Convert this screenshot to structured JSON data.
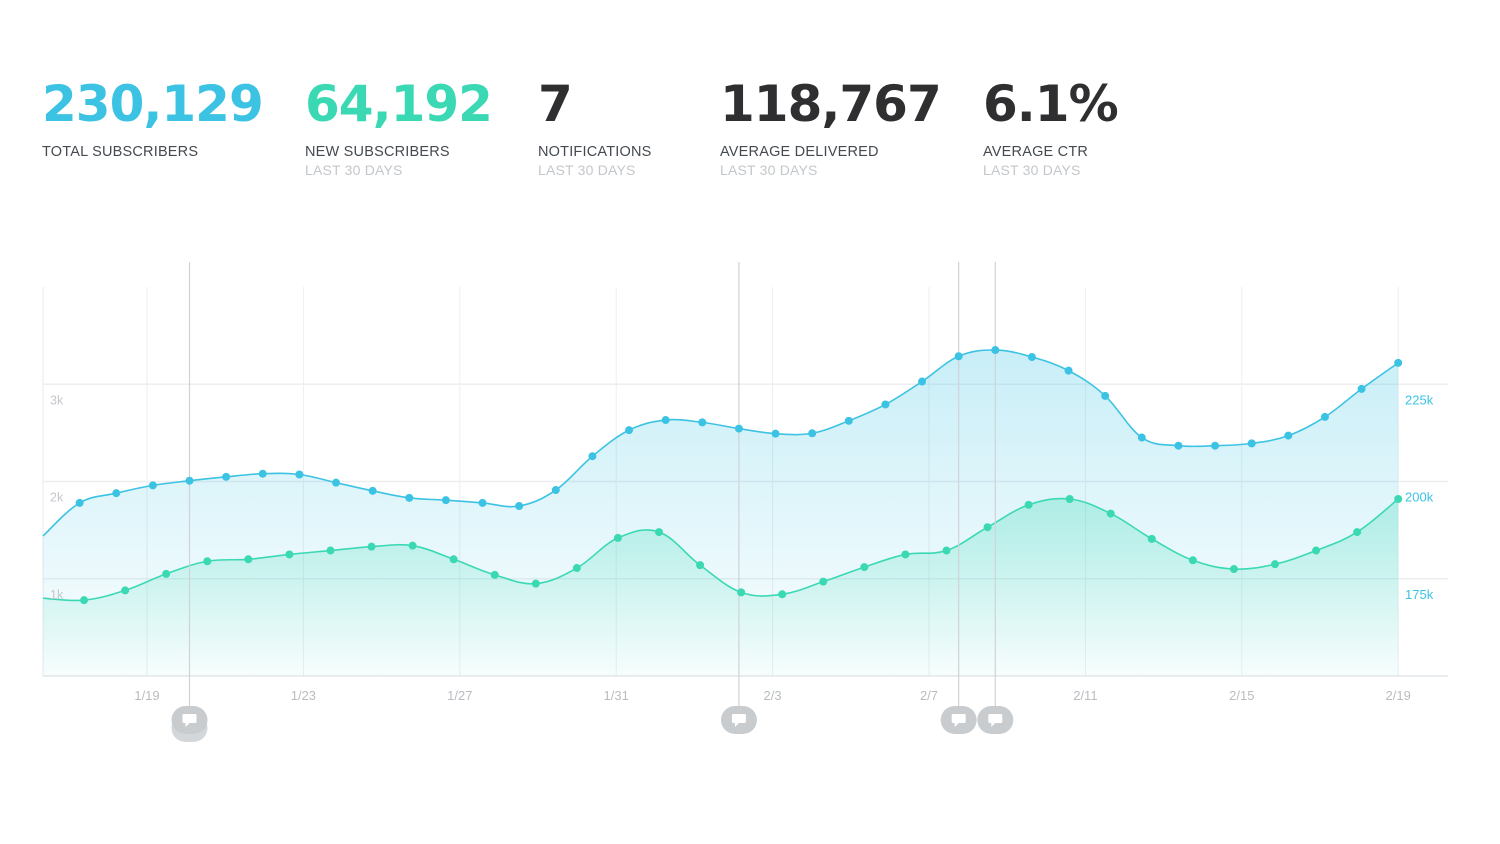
{
  "stats": [
    {
      "value": "230,129",
      "label": "TOTAL SUBSCRIBERS",
      "sub": "",
      "color": "#3cc3e3"
    },
    {
      "value": "64,192",
      "label": "NEW SUBSCRIBERS",
      "sub": "LAST 30 DAYS",
      "color": "#3ad9b4"
    },
    {
      "value": "7",
      "label": "NOTIFICATIONS",
      "sub": "LAST 30 DAYS",
      "color": "#2f2f31"
    },
    {
      "value": "118,767",
      "label": "AVERAGE DELIVERED",
      "sub": "LAST 30 DAYS",
      "color": "#2f2f31"
    },
    {
      "value": "6.1%",
      "label": "AVERAGE CTR",
      "sub": "LAST 30 DAYS",
      "color": "#2f2f31"
    }
  ],
  "chart_data": {
    "type": "area",
    "x_ticks": [
      "1/19",
      "1/23",
      "1/27",
      "1/31",
      "2/3",
      "2/7",
      "2/11",
      "2/15",
      "2/19"
    ],
    "y_left_ticks": [
      "1k",
      "2k",
      "3k"
    ],
    "y_left_range": [
      0,
      4000
    ],
    "y_right_ticks": [
      "175k",
      "200k",
      "225k"
    ],
    "y_right_range": [
      150000,
      250000
    ],
    "grid": true,
    "series": [
      {
        "axis": "right",
        "color": "#3cc3e3",
        "values": [
          186000,
          194500,
          197000,
          199000,
          200200,
          201200,
          202000,
          201800,
          199700,
          197600,
          195800,
          195200,
          194500,
          193700,
          197800,
          206500,
          213200,
          215800,
          215200,
          213600,
          212300,
          212400,
          215600,
          219800,
          225700,
          232200,
          233800,
          232000,
          228500,
          222000,
          211300,
          209200,
          209200,
          209800,
          211800,
          216600,
          223800,
          230500
        ]
      },
      {
        "axis": "left",
        "color": "#3ad9b4",
        "values": [
          800,
          780,
          880,
          1050,
          1180,
          1200,
          1250,
          1290,
          1330,
          1340,
          1200,
          1040,
          950,
          1110,
          1420,
          1480,
          1140,
          860,
          840,
          970,
          1120,
          1250,
          1290,
          1530,
          1760,
          1820,
          1670,
          1410,
          1190,
          1100,
          1150,
          1290,
          1480,
          1820
        ]
      }
    ],
    "annotations": [
      {
        "x_index": 4,
        "count": 2
      },
      {
        "x_index": 19
      },
      {
        "x_index": 25
      },
      {
        "x_index": 26
      }
    ],
    "annotation_icon": "chat-bubble-icon"
  }
}
